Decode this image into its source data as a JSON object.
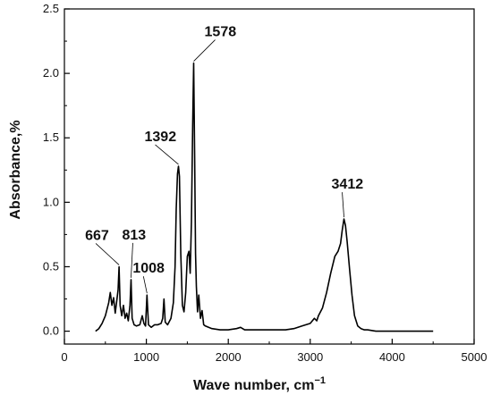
{
  "chart_data": {
    "type": "line",
    "title": "",
    "xlabel": "Wave number, cm",
    "xlabel_superscript": "−1",
    "ylabel": "Absorbance,%",
    "xlim": [
      0,
      5000
    ],
    "ylim": [
      -0.1,
      2.5
    ],
    "x_ticks": [
      0,
      1000,
      2000,
      3000,
      4000,
      5000
    ],
    "y_ticks": [
      0.0,
      0.5,
      1.0,
      1.5,
      2.0,
      2.5
    ],
    "y_tick_labels": [
      "0.0",
      "0.5",
      "1.0",
      "1.5",
      "2.0",
      "2.5"
    ],
    "grid": false,
    "line_color": "#000000",
    "series": [
      {
        "x": [
          380,
          420,
          460,
          500,
          540,
          560,
          580,
          600,
          620,
          640,
          655,
          667,
          680,
          700,
          720,
          740,
          760,
          780,
          800,
          813,
          826,
          850,
          880,
          920,
          950,
          970,
          990,
          1008,
          1026,
          1060,
          1100,
          1140,
          1180,
          1200,
          1215,
          1230,
          1260,
          1300,
          1330,
          1350,
          1365,
          1380,
          1392,
          1404,
          1420,
          1440,
          1460,
          1480,
          1500,
          1520,
          1535,
          1550,
          1565,
          1578,
          1590,
          1600,
          1610,
          1625,
          1640,
          1660,
          1680,
          1700,
          1720,
          1760,
          1800,
          1900,
          2000,
          2100,
          2150,
          2200,
          2300,
          2400,
          2500,
          2600,
          2700,
          2800,
          2900,
          3000,
          3050,
          3080,
          3100,
          3150,
          3200,
          3250,
          3300,
          3340,
          3370,
          3390,
          3412,
          3430,
          3450,
          3480,
          3510,
          3540,
          3580,
          3620,
          3660,
          3700,
          3800,
          4000,
          4200,
          4400,
          4500
        ],
        "y": [
          0.0,
          0.02,
          0.06,
          0.12,
          0.22,
          0.3,
          0.2,
          0.26,
          0.14,
          0.24,
          0.32,
          0.5,
          0.2,
          0.12,
          0.2,
          0.1,
          0.14,
          0.08,
          0.2,
          0.4,
          0.1,
          0.05,
          0.04,
          0.05,
          0.12,
          0.06,
          0.04,
          0.28,
          0.05,
          0.03,
          0.05,
          0.05,
          0.06,
          0.1,
          0.25,
          0.07,
          0.05,
          0.1,
          0.22,
          0.5,
          0.95,
          1.22,
          1.28,
          1.2,
          0.6,
          0.2,
          0.15,
          0.3,
          0.58,
          0.62,
          0.45,
          0.85,
          1.6,
          2.08,
          1.35,
          0.6,
          0.35,
          0.15,
          0.28,
          0.1,
          0.16,
          0.05,
          0.04,
          0.03,
          0.02,
          0.01,
          0.01,
          0.02,
          0.03,
          0.01,
          0.01,
          0.01,
          0.01,
          0.01,
          0.01,
          0.02,
          0.04,
          0.06,
          0.1,
          0.08,
          0.12,
          0.18,
          0.3,
          0.45,
          0.58,
          0.62,
          0.68,
          0.78,
          0.87,
          0.82,
          0.7,
          0.48,
          0.28,
          0.12,
          0.04,
          0.02,
          0.01,
          0.01,
          0.0,
          0.0,
          0.0,
          0.0,
          0.0
        ]
      }
    ],
    "annotations": [
      {
        "text": "667",
        "x": 667,
        "y": 0.5
      },
      {
        "text": "813",
        "x": 813,
        "y": 0.4
      },
      {
        "text": "1008",
        "x": 1008,
        "y": 0.28
      },
      {
        "text": "1392",
        "x": 1392,
        "y": 1.28
      },
      {
        "text": "1578",
        "x": 1578,
        "y": 2.08
      },
      {
        "text": "3412",
        "x": 3412,
        "y": 0.87
      }
    ]
  }
}
